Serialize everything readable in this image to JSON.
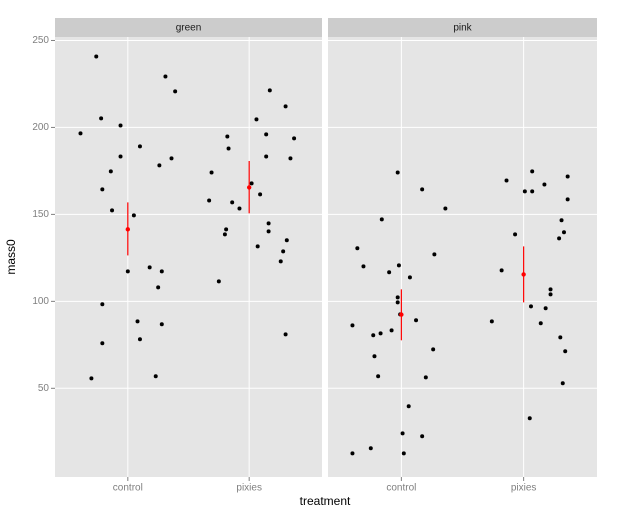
{
  "chart_data": {
    "type": "scatter",
    "xlabel": "treatment",
    "ylabel": "mass0",
    "xlim": [
      0.4,
      2.6
    ],
    "ylim": [
      -1,
      252
    ],
    "xticks": [
      {
        "value": 1,
        "label": "control"
      },
      {
        "value": 2,
        "label": "pixies"
      }
    ],
    "yticks": [
      50,
      100,
      150,
      200,
      250
    ],
    "grid": true,
    "point_color": "#000000",
    "summary_color": "#ff0000",
    "facets": [
      {
        "name": "green",
        "x": [
          0.61,
          0.74,
          0.78,
          0.94,
          0.94,
          0.79,
          0.86,
          0.87,
          1.1,
          1.05,
          1.0,
          0.79,
          1.08,
          1.1,
          0.79,
          0.7,
          1.31,
          1.39,
          1.36,
          1.26,
          1.18,
          1.28,
          1.25,
          1.28,
          1.23,
          1.69,
          1.67,
          1.82,
          1.83,
          1.86,
          1.92,
          1.81,
          1.8,
          1.75,
          2.02,
          2.09,
          2.06,
          2.17,
          2.14,
          2.14,
          2.07,
          2.16,
          2.16,
          2.3,
          2.37,
          2.34,
          2.31,
          2.28,
          2.26,
          2.3
        ],
        "y": [
          196.6,
          240.8,
          205.2,
          201.1,
          183.3,
          164.4,
          174.7,
          152.3,
          189.1,
          149.4,
          117.2,
          98.3,
          88.5,
          78.2,
          75.9,
          55.7,
          229.3,
          220.7,
          182.2,
          178.2,
          119.5,
          117.2,
          108.0,
          86.8,
          56.9,
          174.1,
          158.0,
          194.8,
          187.9,
          156.9,
          153.4,
          141.4,
          138.5,
          111.5,
          167.8,
          161.5,
          204.6,
          221.3,
          196.0,
          183.3,
          131.6,
          144.8,
          140.2,
          212.1,
          193.7,
          182.2,
          135.1,
          128.7,
          123.0,
          81.0
        ],
        "summary": {
          "x": [
            1,
            2
          ],
          "mean": [
            141.4,
            165.5
          ],
          "lower": [
            126.4,
            150.6
          ],
          "upper": [
            156.9,
            180.7
          ]
        }
      },
      {
        "name": "pink",
        "x": [
          0.6,
          0.64,
          0.69,
          0.6,
          0.75,
          0.77,
          0.83,
          0.78,
          0.81,
          0.84,
          0.9,
          0.92,
          0.97,
          0.98,
          0.97,
          0.97,
          0.99,
          1.01,
          1.02,
          1.07,
          1.06,
          1.12,
          1.17,
          1.17,
          1.2,
          1.26,
          1.27,
          1.36,
          1.74,
          1.82,
          1.86,
          1.93,
          2.01,
          2.06,
          2.07,
          2.07,
          2.05,
          2.14,
          2.17,
          2.18,
          2.22,
          2.22,
          2.29,
          2.31,
          2.33,
          2.36,
          2.36,
          2.3,
          2.34,
          2.32
        ],
        "y": [
          86.2,
          130.5,
          120.1,
          12.6,
          15.5,
          80.5,
          81.6,
          68.4,
          56.9,
          147.1,
          116.7,
          83.3,
          174.1,
          120.7,
          102.3,
          99.4,
          92.5,
          24.1,
          12.6,
          113.8,
          39.7,
          89.1,
          164.4,
          22.4,
          56.3,
          72.4,
          127.0,
          153.4,
          88.5,
          117.8,
          169.5,
          138.5,
          163.2,
          97.1,
          163.2,
          174.7,
          32.8,
          87.4,
          167.2,
          96.0,
          106.9,
          104.0,
          136.2,
          146.6,
          139.7,
          171.8,
          158.6,
          79.3,
          71.3,
          52.9
        ],
        "summary": {
          "x": [
            1,
            2
          ],
          "mean": [
            92.4,
            115.5
          ],
          "lower": [
            77.6,
            99.4
          ],
          "upper": [
            106.9,
            131.6
          ]
        }
      }
    ]
  }
}
